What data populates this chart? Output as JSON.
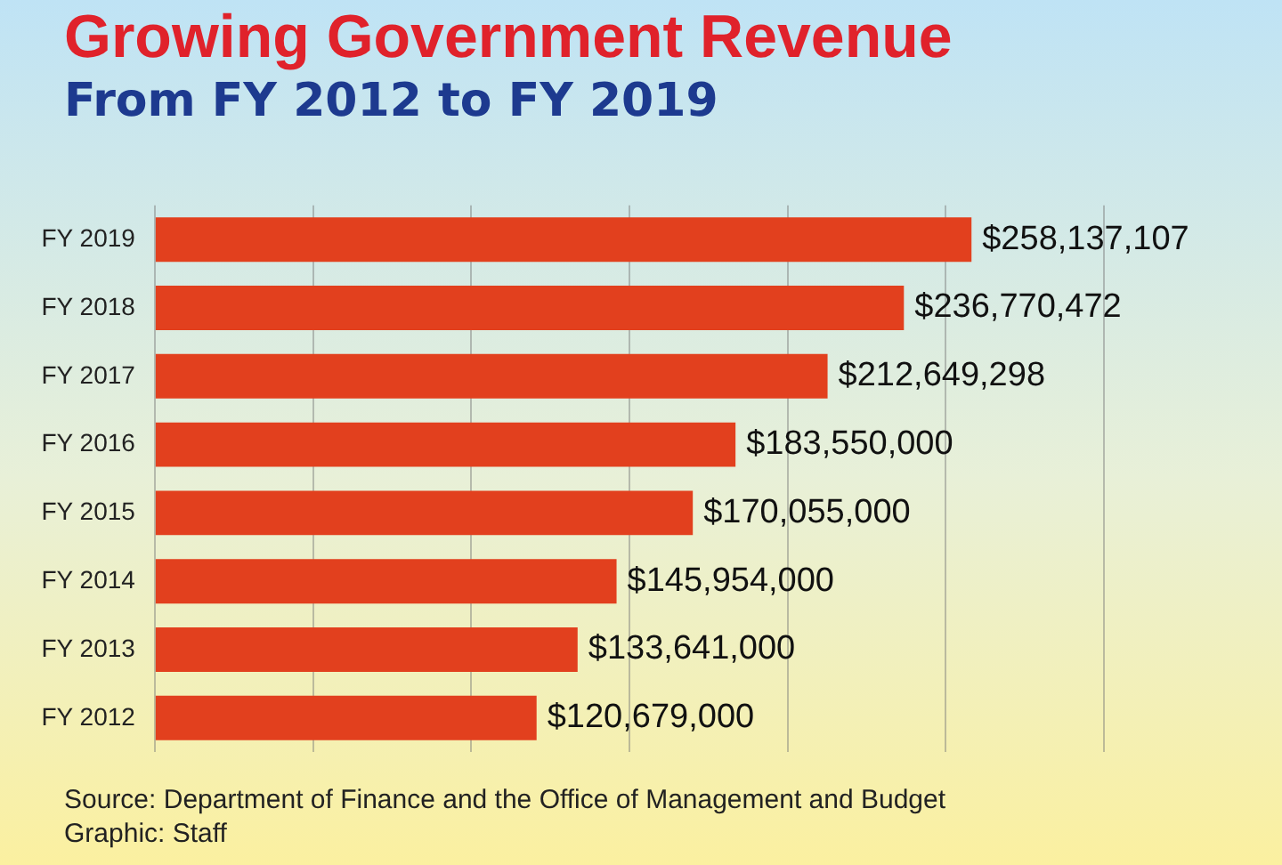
{
  "chart_data": {
    "type": "bar",
    "orientation": "horizontal",
    "title": "Growing Government Revenue",
    "subtitle": "From FY 2012 to FY 2019",
    "categories": [
      "FY 2019",
      "FY 2018",
      "FY 2017",
      "FY 2016",
      "FY 2015",
      "FY 2014",
      "FY 2013",
      "FY 2012"
    ],
    "values": [
      258137107,
      236770472,
      212649298,
      183550000,
      170055000,
      145954000,
      133641000,
      120679000
    ],
    "value_labels": [
      "$258,137,107",
      "$236,770,472",
      "$212,649,298",
      "$183,550,000",
      "$170,055,000",
      "$145,954,000",
      "$133,641,000",
      "$120,679,000"
    ],
    "color": "#e2401e",
    "xlim": [
      0,
      300000000
    ],
    "xticks": [
      {
        "value": 0,
        "label": null
      },
      {
        "value": 50000000,
        "label": null
      },
      {
        "value": 100000000,
        "label": null
      },
      {
        "value": 150000000,
        "label": null
      },
      {
        "value": 200000000,
        "label": null
      },
      {
        "value": 250000000,
        "label": null
      },
      {
        "value": 300000000,
        "label": null
      }
    ],
    "grid": "x",
    "tick_labels": "y",
    "annotations": [
      "Source: Department of Finance and the Office of Management and Budget",
      "Graphic: Staff"
    ]
  }
}
